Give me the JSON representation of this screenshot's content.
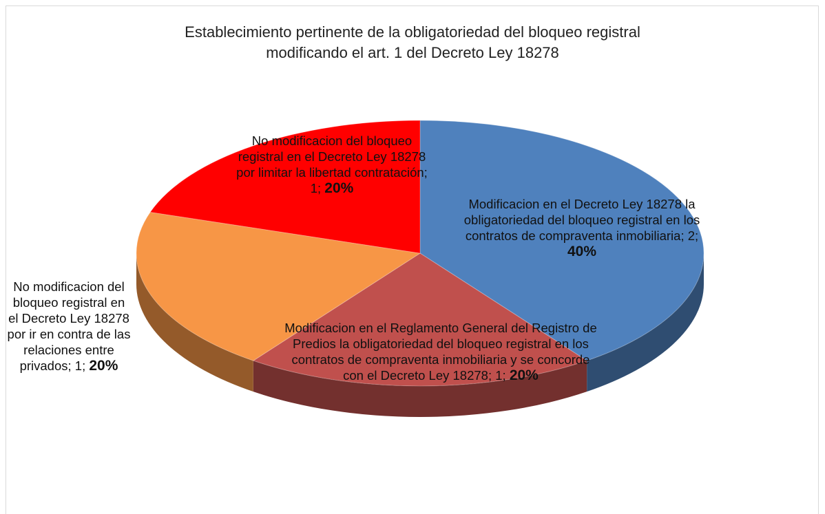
{
  "chart_data": {
    "type": "pie",
    "title": "Establecimiento pertinente de la obligatoriedad del bloqueo registral modificando el art. 1 del Decreto Ley 18278",
    "categories": [
      "Modificacion en el Decreto Ley 18278 la obligatoriedad del bloqueo registral en los contratos de compraventa inmobiliaria",
      "Modificacion en el Reglamento General del Registro de Predios la obligatoriedad del bloqueo registral en los contratos de compraventa inmobiliaria y se concorde con el Decreto Ley 18278",
      "No modificacion del bloqueo registral en el Decreto Ley 18278 por ir en contra de las relaciones entre privados",
      "No modificacion del bloqueo registral en el Decreto Ley 18278 por limitar la libertad contratación"
    ],
    "values": [
      2,
      1,
      1,
      1
    ],
    "percent_labels": [
      "40%",
      "20%",
      "20%",
      "20%"
    ],
    "label_separator": "; ",
    "colors": [
      "#4f81bd",
      "#c0504d",
      "#f79646",
      "#ff0000"
    ]
  }
}
